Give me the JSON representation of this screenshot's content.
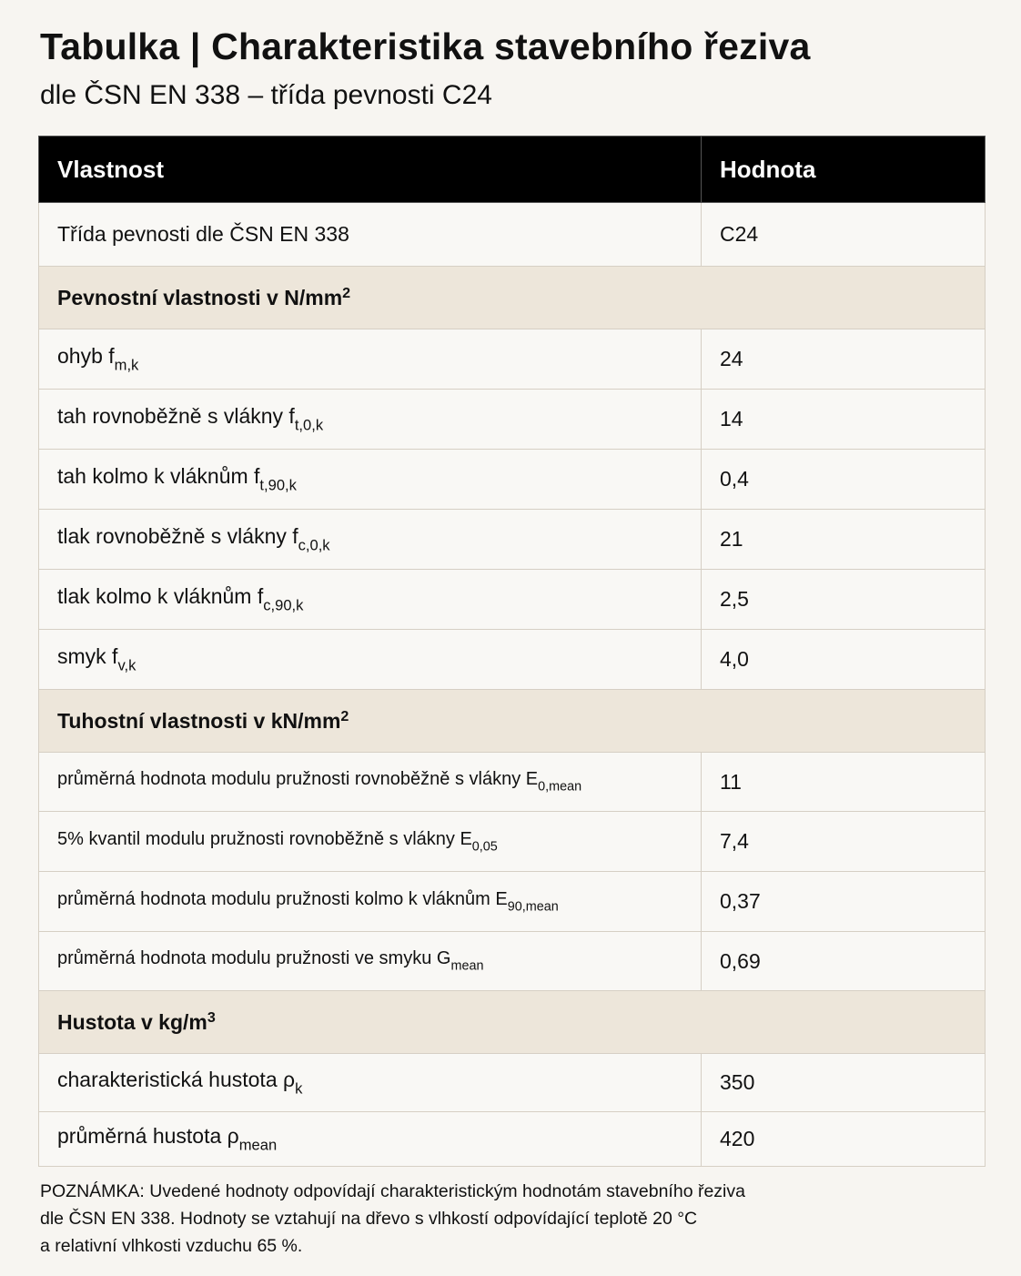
{
  "title": "Tabulka | Charakteristika stavebního řeziva",
  "subtitle": "dle ČSN EN 338 – třída pevnosti C24",
  "table": {
    "headers": [
      "Vlastnost",
      "Hodnota"
    ],
    "class_row": {
      "label": "Třída pevnosti dle ČSN EN 338",
      "value": "C24"
    },
    "sections": [
      {
        "title": "Pevnostní vlastnosti v N/mm",
        "sup": "2",
        "rows": [
          {
            "label": "ohyb f",
            "sub": "m,k",
            "value": "24"
          },
          {
            "label": "tah rovnoběžně s vlákny f",
            "sub": "t,0,k",
            "value": "14"
          },
          {
            "label": "tah kolmo k vláknům f",
            "sub": "t,90,k",
            "value": "0,4"
          },
          {
            "label": "tlak rovnoběžně s vlákny f",
            "sub": "c,0,k",
            "value": "21"
          },
          {
            "label": "tlak kolmo k vláknům f",
            "sub": "c,90,k",
            "value": "2,5"
          },
          {
            "label": "smyk f",
            "sub": "v,k",
            "value": "4,0"
          }
        ]
      },
      {
        "title": "Tuhostní vlastnosti v kN/mm",
        "sup": "2",
        "rows": [
          {
            "label": "průměrná hodnota modulu pružnosti rovnoběžně s vlákny E",
            "sub": "0,mean",
            "value": "11"
          },
          {
            "label": "5% kvantil modulu pružnosti rovnoběžně s vlákny E",
            "sub": "0,05",
            "value": "7,4"
          },
          {
            "label": "průměrná hodnota modulu pružnosti kolmo k vláknům E",
            "sub": "90,mean",
            "value": "0,37"
          },
          {
            "label": "průměrná hodnota modulu pružnosti ve smyku G",
            "sub": "mean",
            "value": "0,69"
          }
        ]
      },
      {
        "title": "Hustota v kg/m",
        "sup": "3",
        "rows": [
          {
            "label": "charakteristická hustota ρ",
            "sub": "k",
            "value": "350"
          },
          {
            "label": "průměrná hustota ρ",
            "sub": "mean",
            "value": "420"
          }
        ]
      }
    ]
  },
  "note": [
    "POZNÁMKA: Uvedené hodnoty odpovídají charakteristickým hodnotám stavebního řeziva",
    "dle ČSN EN 338. Hodnoty se vztahují na dřevo s vlhkostí odpovídající teplotě 20 °C",
    "a relativní vlhkosti vzduchu 65 %."
  ]
}
